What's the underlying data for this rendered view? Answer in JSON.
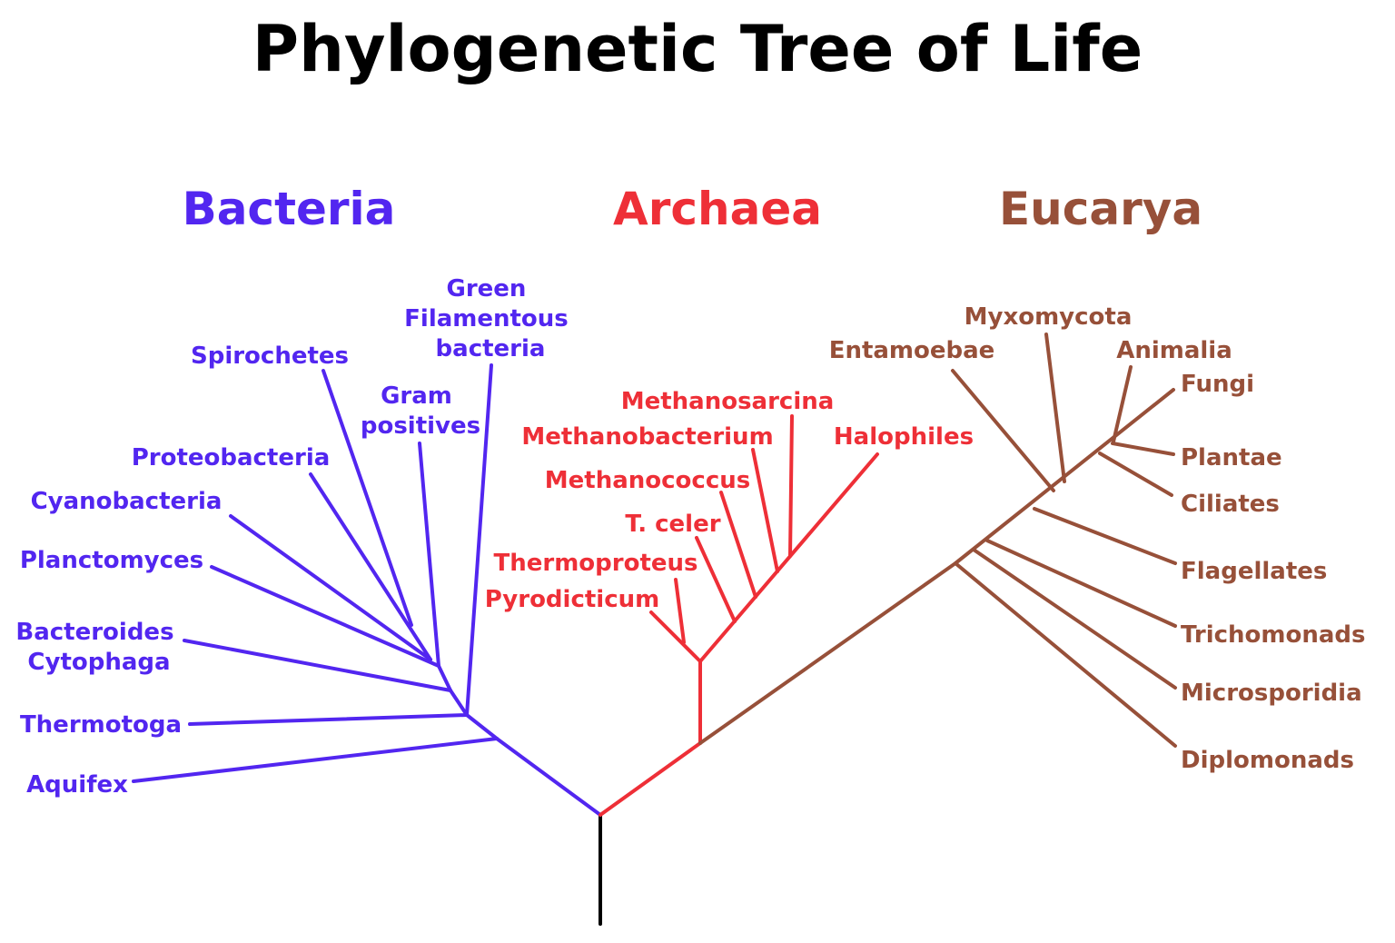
{
  "title": "Phylogenetic Tree of Life",
  "colors": {
    "bacteria": "#5226f0",
    "archaea": "#ee2f37",
    "eucarya": "#975039",
    "root": "#000000"
  },
  "domains": {
    "bacteria": "Bacteria",
    "archaea": "Archaea",
    "eucarya": "Eucarya"
  },
  "bacteria": {
    "green_filamentous": [
      "Green",
      "Filamentous",
      "bacteria"
    ],
    "spirochetes": "Spirochetes",
    "gram_positives": [
      "Gram",
      "positives"
    ],
    "proteobacteria": "Proteobacteria",
    "cyanobacteria": "Cyanobacteria",
    "planctomyces": "Planctomyces",
    "bacteroides_cytophaga": [
      "Bacteroides",
      "Cytophaga"
    ],
    "thermotoga": "Thermotoga",
    "aquifex": "Aquifex"
  },
  "archaea": {
    "methanosarcina": "Methanosarcina",
    "methanobacterium": "Methanobacterium",
    "halophiles": "Halophiles",
    "methanococcus": "Methanococcus",
    "t_celer": "T. celer",
    "thermoproteus": "Thermoproteus",
    "pyrodicticum": "Pyrodicticum"
  },
  "eucarya": {
    "myxomycota": "Myxomycota",
    "entamoebae": "Entamoebae",
    "animalia": "Animalia",
    "fungi": "Fungi",
    "plantae": "Plantae",
    "ciliates": "Ciliates",
    "flagellates": "Flagellates",
    "trichomonads": "Trichomonads",
    "microsporidia": "Microsporidia",
    "diplomonads": "Diplomonads"
  }
}
